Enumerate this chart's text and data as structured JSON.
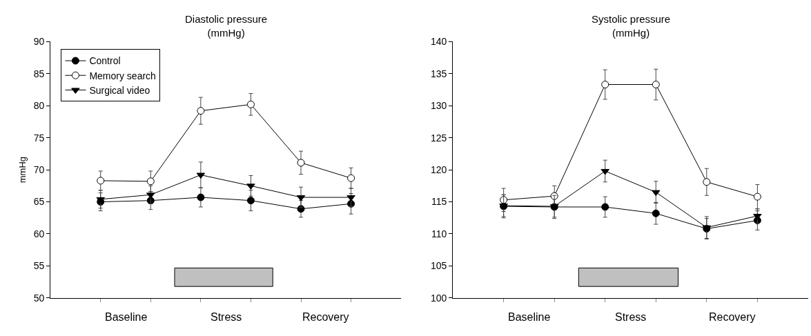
{
  "chart_data": [
    {
      "type": "line",
      "title": "Diastolic pressure\n(mmHg)",
      "ylabel": "mmHg",
      "categories": [
        null,
        null,
        null,
        null,
        null,
        null
      ],
      "annotations": [
        "Baseline",
        "Stress",
        "Recovery"
      ],
      "ylim": [
        50,
        90
      ],
      "yticks": [
        50,
        55,
        60,
        65,
        70,
        75,
        80,
        85,
        90
      ],
      "legend": "top left",
      "series": [
        {
          "name": "Control",
          "color": "#000000",
          "marker": "circle",
          "values": [
            65.0,
            65.2,
            65.7,
            65.2,
            63.9,
            64.7
          ],
          "errors": [
            1.4,
            1.4,
            1.5,
            1.6,
            1.3,
            1.6
          ]
        },
        {
          "name": "Memory search",
          "color": "#000000",
          "marker": "circle-open",
          "values": [
            68.3,
            68.2,
            79.2,
            80.2,
            71.1,
            68.7
          ],
          "errors": [
            1.5,
            1.6,
            2.1,
            1.7,
            1.8,
            1.6
          ]
        },
        {
          "name": "Surgical video",
          "color": "#000000",
          "marker": "triangle-down",
          "values": [
            65.4,
            66.1,
            69.2,
            67.5,
            65.7,
            65.7
          ],
          "errors": [
            1.4,
            1.4,
            2.0,
            1.6,
            1.6,
            1.4
          ]
        }
      ]
    },
    {
      "type": "line",
      "title": "Systolic pressure\n(mmHg)",
      "categories": [
        null,
        null,
        null,
        null,
        null,
        null
      ],
      "annotations": [
        "Baseline",
        "Stress",
        "Recovery"
      ],
      "ylim": [
        100,
        140
      ],
      "yticks": [
        100,
        105,
        110,
        115,
        120,
        125,
        130,
        135,
        140
      ],
      "series": [
        {
          "color": "#000000",
          "marker": "circle",
          "values": [
            114.3,
            114.2,
            114.2,
            113.2,
            110.8,
            112.1
          ],
          "errors": [
            1.8,
            1.8,
            1.6,
            1.7,
            1.6,
            1.5
          ]
        },
        {
          "color": "#000000",
          "marker": "circle-open",
          "values": [
            115.3,
            115.9,
            133.3,
            133.3,
            118.1,
            115.8
          ],
          "errors": [
            1.8,
            1.6,
            2.3,
            2.4,
            2.1,
            1.9
          ]
        },
        {
          "color": "#000000",
          "marker": "triangle-down",
          "values": [
            114.4,
            114.3,
            119.8,
            116.5,
            111.0,
            112.8
          ],
          "errors": [
            1.7,
            1.7,
            1.7,
            1.7,
            1.7,
            1.1
          ]
        }
      ]
    }
  ]
}
